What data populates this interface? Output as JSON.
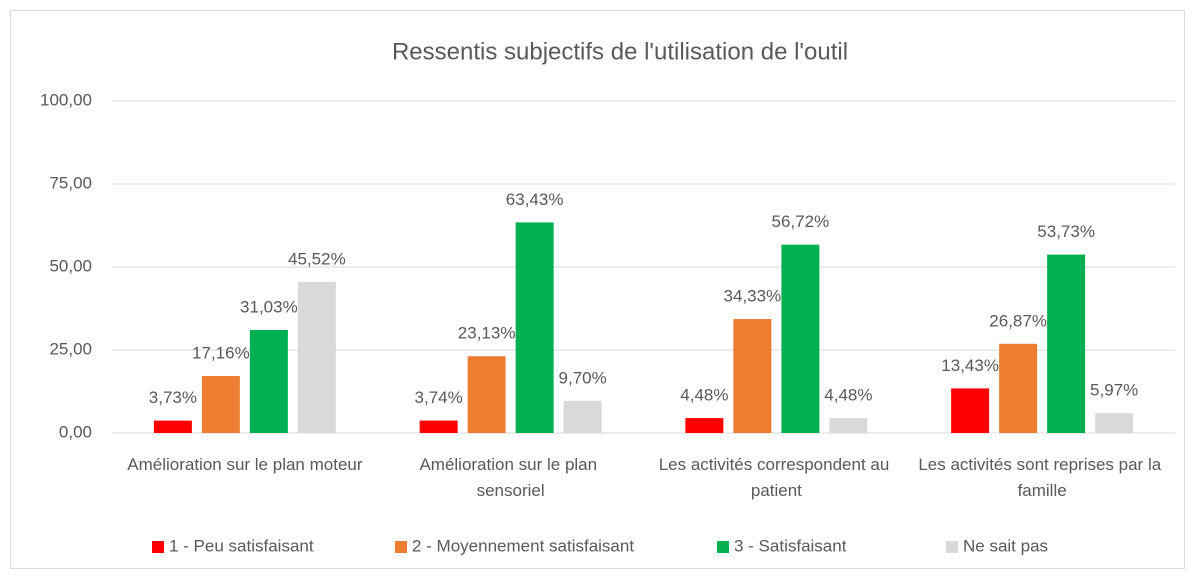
{
  "chart_data": {
    "type": "bar",
    "title": "Ressentis subjectifs de l'utilisation de l'outil",
    "categories": [
      "Amélioration sur le plan moteur",
      "Amélioration sur le plan sensoriel",
      "Les activités correspondent au patient",
      "Les activités sont reprises par la famille"
    ],
    "series": [
      {
        "name": "1 - Peu satisfaisant",
        "color": "#ff0000",
        "values": [
          3.73,
          3.74,
          4.48,
          13.43
        ],
        "value_labels": [
          "3,73%",
          "3,74%",
          "4,48%",
          "13,43%"
        ]
      },
      {
        "name": "2 - Moyennement satisfaisant",
        "color": "#ed7d31",
        "values": [
          17.16,
          23.13,
          34.33,
          26.87
        ],
        "value_labels": [
          "17,16%",
          "23,13%",
          "34,33%",
          "26,87%"
        ]
      },
      {
        "name": "3 - Satisfaisant",
        "color": "#00b050",
        "values": [
          31.03,
          63.43,
          56.72,
          53.73
        ],
        "value_labels": [
          "31,03%",
          "63,43%",
          "56,72%",
          "53,73%"
        ]
      },
      {
        "name": "Ne sait pas",
        "color": "#d9d9d9",
        "values": [
          45.52,
          9.7,
          4.48,
          5.97
        ],
        "value_labels": [
          "45,52%",
          "9,70%",
          "4,48%",
          "5,97%"
        ]
      }
    ],
    "ylim": [
      0,
      100
    ],
    "yticks": [
      {
        "value": 0,
        "label": "0,00"
      },
      {
        "value": 25,
        "label": "25,00"
      },
      {
        "value": 50,
        "label": "50,00"
      },
      {
        "value": 75,
        "label": "75,00"
      },
      {
        "value": 100,
        "label": "100,00"
      }
    ],
    "grid": true,
    "legend": "bottom"
  }
}
